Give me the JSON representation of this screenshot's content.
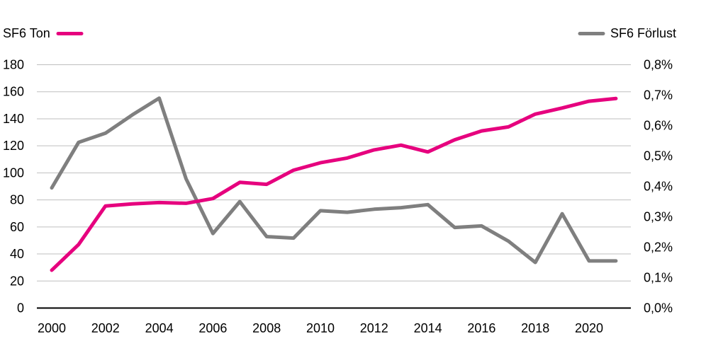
{
  "chart_data": {
    "type": "line",
    "title": "",
    "x": [
      2000,
      2001,
      2002,
      2003,
      2004,
      2005,
      2006,
      2007,
      2008,
      2009,
      2010,
      2011,
      2012,
      2013,
      2014,
      2015,
      2016,
      2017,
      2018,
      2019,
      2020,
      2021
    ],
    "x_tick_labels": [
      "2000",
      "2002",
      "2004",
      "2006",
      "2008",
      "2010",
      "2012",
      "2014",
      "2016",
      "2018",
      "2020"
    ],
    "left_axis": {
      "ylim": [
        0,
        180
      ],
      "tick_labels": [
        "0",
        "20",
        "40",
        "60",
        "80",
        "100",
        "120",
        "140",
        "160",
        "180"
      ]
    },
    "right_axis": {
      "ylim": [
        0,
        0.8
      ],
      "unit": "%",
      "tick_labels": [
        "0,0%",
        "0,1%",
        "0,2%",
        "0,3%",
        "0,4%",
        "0,5%",
        "0,6%",
        "0,7%",
        "0,8%"
      ]
    },
    "grid": "horizontal",
    "series": [
      {
        "name": "SF6 Ton",
        "axis": "left",
        "color": "#e6007e",
        "legend_position": "top-left",
        "values": [
          28,
          47,
          75.5,
          77,
          78,
          77.5,
          81,
          93,
          91.5,
          102,
          107.5,
          111,
          117,
          120.5,
          115.5,
          124.5,
          131,
          134,
          143.5,
          148,
          153,
          155
        ]
      },
      {
        "name": "SF6 Förlust",
        "axis": "right",
        "color": "#7f7f7f",
        "legend_position": "top-right",
        "values": [
          0.395,
          0.545,
          0.575,
          0.635,
          0.69,
          0.425,
          0.245,
          0.35,
          0.235,
          0.23,
          0.32,
          0.315,
          0.325,
          0.33,
          0.34,
          0.265,
          0.27,
          0.22,
          0.15,
          0.31,
          0.155,
          0.155
        ]
      }
    ]
  }
}
